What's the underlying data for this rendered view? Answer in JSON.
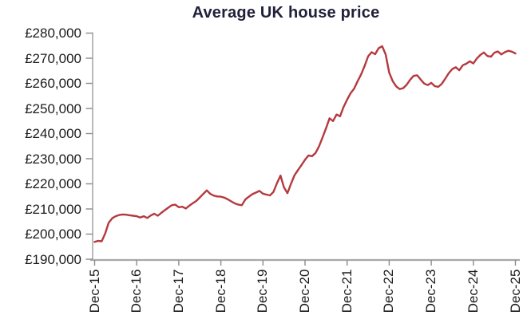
{
  "chart": {
    "title": "Average UK house price",
    "y_tick_labels": [
      "£280,000",
      "£270,000",
      "£260,000",
      "£250,000",
      "£240,000",
      "£230,000",
      "£220,000",
      "£210,000",
      "£200,000",
      "£190,000"
    ],
    "x_tick_labels": [
      "Dec-15",
      "Dec-16",
      "Dec-17",
      "Dec-18",
      "Dec-19",
      "Dec-20",
      "Dec-21",
      "Dec-22",
      "Dec-23",
      "Dec-24",
      "Dec-25"
    ],
    "colors": {
      "line": "#b5393f",
      "title": "#21203a",
      "axis": "#a8a8a8",
      "tick": "#8c8c8c",
      "label": "#1b1b1b",
      "background": "#ffffff"
    }
  },
  "chart_data": {
    "type": "line",
    "title": "Average UK house price",
    "xlabel": "",
    "ylabel": "",
    "x_unit": "month",
    "x_start": "Dec-2015",
    "x_end": "Dec-2025",
    "x_tick_labels": [
      "Dec-15",
      "Dec-16",
      "Dec-17",
      "Dec-18",
      "Dec-19",
      "Dec-20",
      "Dec-21",
      "Dec-22",
      "Dec-23",
      "Dec-24",
      "Dec-25"
    ],
    "ylim": [
      190000,
      280000
    ],
    "y_tick_step": 10000,
    "grid": false,
    "legend_position": "none",
    "series": [
      {
        "name": "Average UK house price (£)",
        "color": "#b5393f",
        "values": [
          196900,
          197300,
          197100,
          200200,
          204500,
          206300,
          207100,
          207600,
          207800,
          207700,
          207500,
          207300,
          207100,
          206600,
          207100,
          206400,
          207400,
          208100,
          207300,
          208400,
          209500,
          210500,
          211500,
          211700,
          210700,
          210900,
          210200,
          211300,
          212300,
          213200,
          214600,
          216000,
          217400,
          216000,
          215300,
          215000,
          214900,
          214500,
          213800,
          213000,
          212200,
          211700,
          211500,
          213800,
          214900,
          215900,
          216500,
          217200,
          216100,
          215700,
          215400,
          216800,
          220300,
          223300,
          218600,
          216300,
          220000,
          223400,
          225500,
          227500,
          229600,
          231300,
          231000,
          232300,
          235000,
          238500,
          242200,
          246100,
          245000,
          247600,
          246900,
          250600,
          253500,
          256100,
          257900,
          260900,
          263600,
          267000,
          270800,
          272400,
          271600,
          274000,
          274800,
          271500,
          264300,
          260900,
          258800,
          257700,
          258100,
          259500,
          261500,
          263000,
          263200,
          261500,
          259900,
          259300,
          260200,
          258900,
          258600,
          259800,
          261900,
          264100,
          265700,
          266400,
          265200,
          267200,
          267800,
          268800,
          267900,
          269900,
          271300,
          272300,
          270900,
          270600,
          272200,
          272700,
          271500,
          272400,
          273000,
          272600,
          271900
        ]
      }
    ]
  }
}
